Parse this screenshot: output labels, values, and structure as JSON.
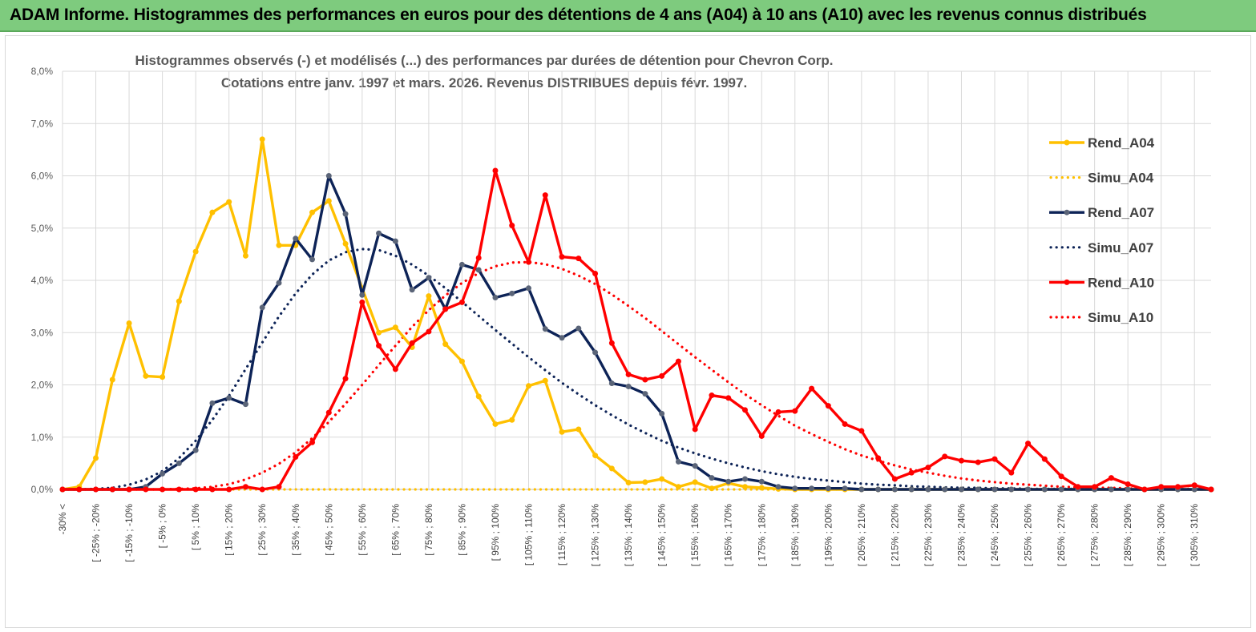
{
  "header": {
    "title": "ADAM Informe. Histogrammes des performances en euros pour des détentions de 4 ans (A04) à 10 ans (A10) avec les revenus connus distribués"
  },
  "chart_data": {
    "type": "line",
    "title": "Histogrammes observés (-)  et modélisés (...) des performances par durées de détention pour Chevron Corp.",
    "subtitle": "Cotations entre janv. 1997 et mars. 2026. Revenus DISTRIBUES depuis févr. 1997.",
    "xlabel": "",
    "ylabel": "",
    "ylim": [
      0,
      8
    ],
    "y_ticks": [
      "0,0%",
      "1,0%",
      "2,0%",
      "3,0%",
      "4,0%",
      "5,0%",
      "6,0%",
      "7,0%",
      "8,0%"
    ],
    "x_tick_labels": [
      "-30% <",
      "[ -25% ; -20%",
      "[ -15% ; -10%",
      "[ -5% ; 0%",
      "[ 5% ; 10%",
      "[ 15% ; 20%",
      "[ 25% ; 30%",
      "[ 35% ; 40%",
      "[ 45% ; 50%",
      "[ 55% ; 60%",
      "[ 65% ; 70%",
      "[ 75% ; 80%",
      "[ 85% ; 90%",
      "[ 95% ; 100%",
      "[ 105% ; 110%",
      "[ 115% ; 120%",
      "[ 125% ; 130%",
      "[ 135% ; 140%",
      "[ 145% ; 150%",
      "[ 155% ; 160%",
      "[ 165% ; 170%",
      "[ 175% ; 180%",
      "[ 185% ; 190%",
      "[ 195% ; 200%",
      "[ 205% ; 210%",
      "[ 215% ; 220%",
      "[ 225% ; 230%",
      "[ 235% ; 240%",
      "[ 245% ; 250%",
      "[ 255% ; 260%",
      "[ 265% ; 270%",
      "[ 275% ; 280%",
      "[ 285% ; 290%",
      "[ 295% ; 300%",
      "[ 305% ; 310%"
    ],
    "n_points": 70,
    "legend_position": "right",
    "series": [
      {
        "name": "Rend_A04",
        "style": "solid",
        "color": "#ffc000",
        "values": [
          0.0,
          0.05,
          0.6,
          2.1,
          3.18,
          2.17,
          2.15,
          3.6,
          4.55,
          5.3,
          5.5,
          4.47,
          6.7,
          4.67,
          4.67,
          5.3,
          5.52,
          4.7,
          3.85,
          3.0,
          3.1,
          2.72,
          3.7,
          2.78,
          2.45,
          1.78,
          1.25,
          1.33,
          1.98,
          2.08,
          1.1,
          1.15,
          0.65,
          0.4,
          0.13,
          0.14,
          0.2,
          0.05,
          0.14,
          0.02,
          0.12,
          0.05,
          0.03,
          0.01,
          0,
          0,
          0,
          0,
          0,
          0,
          0,
          0,
          0,
          0,
          0,
          0,
          0,
          0,
          0,
          0,
          0,
          0,
          0,
          0,
          0,
          0,
          0,
          0,
          0,
          0
        ]
      },
      {
        "name": "Simu_A04",
        "style": "dotted",
        "color": "#ffc000",
        "values": [
          0.0,
          0.0,
          0.0,
          0.0,
          0.0,
          0.0,
          0.0,
          0.0,
          0.0,
          0.0,
          0.0,
          0.0,
          0.0,
          0.0,
          0.0,
          0.0,
          0.0,
          0.0,
          0.0,
          0.0,
          0.0,
          0.0,
          0.0,
          0.0,
          0.0,
          0.0,
          0.0,
          0.0,
          0.0,
          0.0,
          0.0,
          0.0,
          0.0,
          0.0,
          0.0,
          0.0,
          0.0,
          0.0,
          0.0,
          0.0,
          0.0,
          0.0,
          0.0,
          0.0,
          0.0,
          0.0,
          0.0,
          0.0,
          0.0,
          0.0,
          0.0,
          0.0,
          0.0,
          0.0,
          0.0,
          0.0,
          0.0,
          0.0,
          0.0,
          0.0,
          0.0,
          0.0,
          0.0,
          0.0,
          0.0,
          0.0,
          0.0,
          0.0,
          0.0,
          0.0
        ]
      },
      {
        "name": "Rend_A07",
        "style": "solid",
        "color": "#0d2357",
        "values": [
          0.0,
          0.0,
          0.0,
          0.0,
          0.0,
          0.05,
          0.3,
          0.5,
          0.75,
          1.65,
          1.75,
          1.63,
          3.48,
          3.95,
          4.8,
          4.4,
          6.0,
          5.27,
          3.72,
          4.9,
          4.75,
          3.82,
          4.05,
          3.45,
          4.3,
          4.2,
          3.67,
          3.75,
          3.85,
          3.07,
          2.9,
          3.08,
          2.62,
          2.03,
          1.97,
          1.83,
          1.45,
          0.53,
          0.45,
          0.22,
          0.15,
          0.2,
          0.15,
          0.05,
          0.02,
          0.02,
          0.02,
          0.02,
          0,
          0,
          0,
          0,
          0,
          0,
          0,
          0,
          0,
          0,
          0,
          0,
          0,
          0,
          0,
          0,
          0,
          0,
          0,
          0,
          0,
          0
        ]
      },
      {
        "name": "Simu_A07",
        "style": "dotted",
        "color": "#0d2357",
        "values": [
          0.0,
          0.0,
          0.01,
          0.03,
          0.09,
          0.19,
          0.35,
          0.6,
          0.93,
          1.33,
          1.79,
          2.3,
          2.81,
          3.31,
          3.75,
          4.11,
          4.38,
          4.54,
          4.6,
          4.58,
          4.47,
          4.3,
          4.09,
          3.85,
          3.59,
          3.32,
          3.05,
          2.79,
          2.53,
          2.28,
          2.04,
          1.82,
          1.61,
          1.42,
          1.24,
          1.08,
          0.93,
          0.8,
          0.69,
          0.59,
          0.5,
          0.42,
          0.35,
          0.29,
          0.24,
          0.2,
          0.17,
          0.14,
          0.11,
          0.09,
          0.08,
          0.06,
          0.05,
          0.04,
          0.03,
          0.03,
          0.02,
          0.02,
          0.01,
          0.01,
          0.01,
          0.01,
          0.01,
          0.0,
          0.0,
          0.0,
          0.0,
          0.0,
          0.0,
          0.0
        ]
      },
      {
        "name": "Rend_A10",
        "style": "solid",
        "color": "#ff0000",
        "values": [
          0.0,
          0.0,
          0.0,
          0.0,
          0.0,
          0.0,
          0.0,
          0.0,
          0.0,
          0.0,
          0.0,
          0.05,
          0.0,
          0.05,
          0.62,
          0.9,
          1.47,
          2.12,
          3.58,
          2.75,
          2.3,
          2.8,
          3.02,
          3.45,
          3.58,
          4.43,
          6.1,
          5.05,
          4.35,
          5.63,
          4.45,
          4.42,
          4.13,
          2.8,
          2.2,
          2.1,
          2.17,
          2.45,
          1.15,
          1.8,
          1.75,
          1.52,
          1.02,
          1.48,
          1.5,
          1.93,
          1.6,
          1.25,
          1.12,
          0.6,
          0.2,
          0.32,
          0.42,
          0.63,
          0.55,
          0.52,
          0.58,
          0.32,
          0.88,
          0.58,
          0.25,
          0.05,
          0.05,
          0.22,
          0.1,
          0.0,
          0.05,
          0.05,
          0.08,
          0.0
        ]
      },
      {
        "name": "Simu_A10",
        "style": "dotted",
        "color": "#ff0000",
        "values": [
          0.0,
          0.0,
          0.0,
          0.0,
          0.0,
          0.0,
          0.0,
          0.01,
          0.02,
          0.05,
          0.1,
          0.19,
          0.32,
          0.49,
          0.71,
          0.98,
          1.29,
          1.64,
          2.0,
          2.38,
          2.75,
          3.11,
          3.43,
          3.71,
          3.95,
          4.14,
          4.27,
          4.34,
          4.35,
          4.31,
          4.22,
          4.09,
          3.93,
          3.73,
          3.51,
          3.28,
          3.03,
          2.78,
          2.53,
          2.29,
          2.05,
          1.82,
          1.61,
          1.41,
          1.22,
          1.06,
          0.91,
          0.77,
          0.65,
          0.55,
          0.46,
          0.38,
          0.32,
          0.26,
          0.21,
          0.17,
          0.14,
          0.11,
          0.09,
          0.07,
          0.05,
          0.04,
          0.03,
          0.03,
          0.02,
          0.01,
          0.01,
          0.01,
          0.01,
          0.0
        ]
      }
    ]
  }
}
